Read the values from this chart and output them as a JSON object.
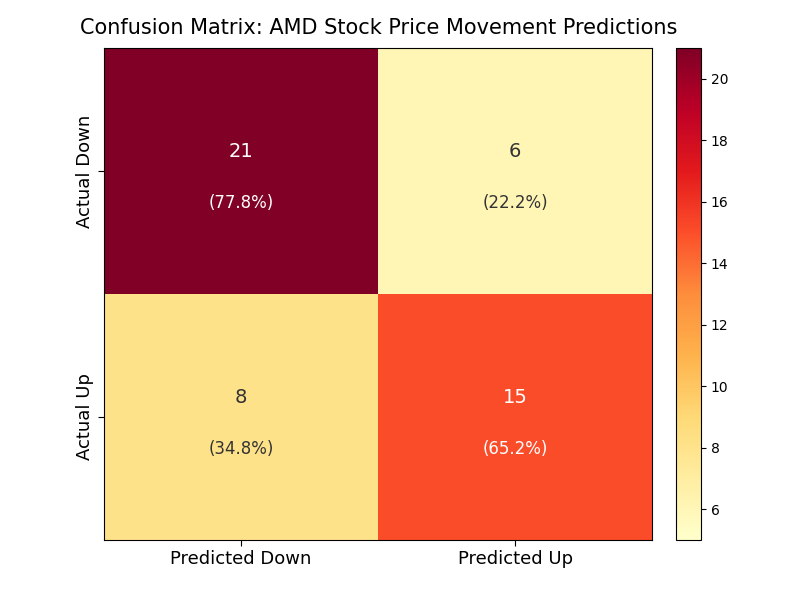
{
  "title": "Confusion Matrix: AMD Stock Price Movement Predictions",
  "matrix": [
    [
      21,
      6
    ],
    [
      8,
      15
    ]
  ],
  "percentages": [
    [
      "77.8%",
      "22.2%"
    ],
    [
      "34.8%",
      "65.2%"
    ]
  ],
  "xlabels": [
    "Predicted Down",
    "Predicted Up"
  ],
  "ylabels": [
    "Actual Down",
    "Actual Up"
  ],
  "colormap": "YlOrRd",
  "vmin": 5,
  "vmax": 21,
  "colorbar_ticks": [
    6,
    8,
    10,
    12,
    14,
    16,
    18,
    20
  ],
  "title_fontsize": 15,
  "label_fontsize": 13,
  "cell_count_fontsize": 14,
  "cell_pct_fontsize": 12,
  "text_color_light": "white",
  "text_color_dark": "#333333",
  "figsize": [
    8.0,
    6.0
  ],
  "dpi": 100,
  "bg_color": "white"
}
